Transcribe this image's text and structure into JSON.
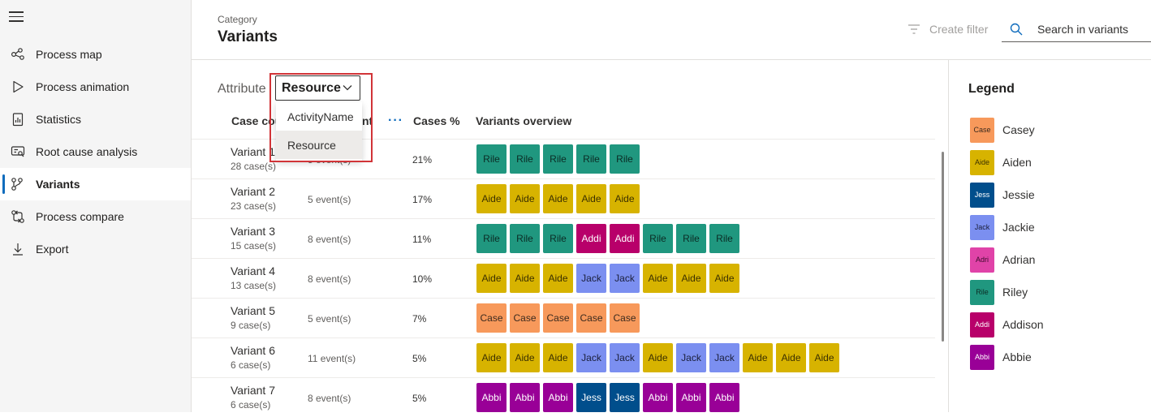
{
  "sidebar": {
    "items": [
      {
        "label": "Process map",
        "icon": "process-map-icon"
      },
      {
        "label": "Process animation",
        "icon": "play-icon"
      },
      {
        "label": "Statistics",
        "icon": "statistics-icon"
      },
      {
        "label": "Root cause analysis",
        "icon": "root-cause-icon"
      },
      {
        "label": "Variants",
        "icon": "variants-icon",
        "active": true
      },
      {
        "label": "Process compare",
        "icon": "compare-icon"
      },
      {
        "label": "Export",
        "icon": "export-icon"
      }
    ]
  },
  "header": {
    "category": "Category",
    "title": "Variants",
    "create_filter": "Create filter",
    "search_placeholder": "Search in variants"
  },
  "attribute": {
    "label": "Attribute",
    "selected": "Resource",
    "options": [
      "ActivityName",
      "Resource"
    ]
  },
  "table": {
    "headers": {
      "case_count": "Case cou",
      "event_count": "nt",
      "cases_pct": "Cases %",
      "overview": "Variants overview"
    },
    "more": "···",
    "rows": [
      {
        "name": "Variant 1",
        "cases": "28 case(s)",
        "events": "5 event(s)",
        "pct": "21%",
        "chips": [
          "Rile",
          "Rile",
          "Rile",
          "Rile",
          "Rile"
        ]
      },
      {
        "name": "Variant 2",
        "cases": "23 case(s)",
        "events": "5 event(s)",
        "pct": "17%",
        "chips": [
          "Aide",
          "Aide",
          "Aide",
          "Aide",
          "Aide"
        ]
      },
      {
        "name": "Variant 3",
        "cases": "15 case(s)",
        "events": "8 event(s)",
        "pct": "11%",
        "chips": [
          "Rile",
          "Rile",
          "Rile",
          "Addi",
          "Addi",
          "Rile",
          "Rile",
          "Rile"
        ]
      },
      {
        "name": "Variant 4",
        "cases": "13 case(s)",
        "events": "8 event(s)",
        "pct": "10%",
        "chips": [
          "Aide",
          "Aide",
          "Aide",
          "Jack",
          "Jack",
          "Aide",
          "Aide",
          "Aide"
        ]
      },
      {
        "name": "Variant 5",
        "cases": "9 case(s)",
        "events": "5 event(s)",
        "pct": "7%",
        "chips": [
          "Case",
          "Case",
          "Case",
          "Case",
          "Case"
        ]
      },
      {
        "name": "Variant 6",
        "cases": "6 case(s)",
        "events": "11 event(s)",
        "pct": "5%",
        "chips": [
          "Aide",
          "Aide",
          "Aide",
          "Jack",
          "Jack",
          "Aide",
          "Jack",
          "Jack",
          "Aide",
          "Aide",
          "Aide"
        ]
      },
      {
        "name": "Variant 7",
        "cases": "6 case(s)",
        "events": "8 event(s)",
        "pct": "5%",
        "chips": [
          "Abbi",
          "Abbi",
          "Abbi",
          "Jess",
          "Jess",
          "Abbi",
          "Abbi",
          "Abbi"
        ]
      }
    ]
  },
  "legend": {
    "title": "Legend",
    "items": [
      {
        "abbr": "Case",
        "name": "Casey",
        "color": "#f7995b",
        "text": "#3b2a1e"
      },
      {
        "abbr": "Aide",
        "name": "Aiden",
        "color": "#d7b300",
        "text": "#3b3000"
      },
      {
        "abbr": "Jess",
        "name": "Jessie",
        "color": "#004e8c",
        "text": "#ffffff"
      },
      {
        "abbr": "Jack",
        "name": "Jackie",
        "color": "#7b8ff0",
        "text": "#1b1f3b"
      },
      {
        "abbr": "Adri",
        "name": "Adrian",
        "color": "#e043a8",
        "text": "#3b0a2b"
      },
      {
        "abbr": "Rile",
        "name": "Riley",
        "color": "#20977f",
        "text": "#0b2b24"
      },
      {
        "abbr": "Addi",
        "name": "Addison",
        "color": "#b8006a",
        "text": "#ffffff"
      },
      {
        "abbr": "Abbi",
        "name": "Abbie",
        "color": "#990097",
        "text": "#ffffff"
      }
    ]
  }
}
